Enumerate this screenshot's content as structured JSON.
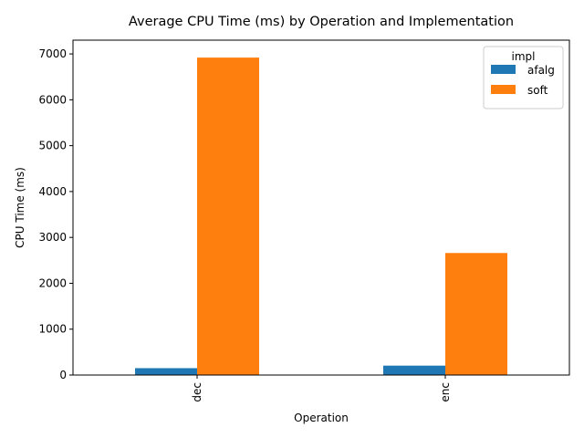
{
  "chart_data": {
    "type": "bar",
    "title": "Average CPU Time (ms) by Operation and Implementation",
    "xlabel": "Operation",
    "ylabel": "CPU Time (ms)",
    "categories": [
      "dec",
      "enc"
    ],
    "series": [
      {
        "name": "afalg",
        "values": [
          150,
          205
        ],
        "color": "#1f77b4"
      },
      {
        "name": "soft",
        "values": [
          6920,
          2660
        ],
        "color": "#ff7f0e"
      }
    ],
    "ylim": [
      0,
      7300
    ],
    "yticks": [
      0,
      1000,
      2000,
      3000,
      4000,
      5000,
      6000,
      7000
    ],
    "grid": false,
    "legend": {
      "title": "impl",
      "placement": "top-right"
    }
  }
}
